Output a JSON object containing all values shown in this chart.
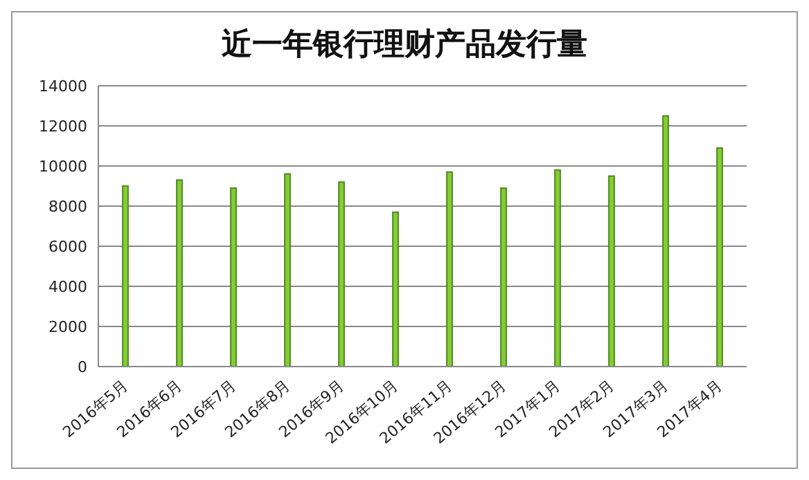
{
  "chart_data": {
    "type": "bar",
    "title": "近一年银行理财产品发行量",
    "categories": [
      "2016年5月",
      "2016年6月",
      "2016年7月",
      "2016年8月",
      "2016年9月",
      "2016年10月",
      "2016年11月",
      "2016年12月",
      "2017年1月",
      "2017年2月",
      "2017年3月",
      "2017年4月"
    ],
    "values": [
      9000,
      9300,
      8900,
      9600,
      9200,
      7700,
      9700,
      8900,
      9800,
      9500,
      12500,
      10900
    ],
    "color": "#86cc36",
    "ylim": [
      0,
      14000
    ],
    "yticks": [
      0,
      2000,
      4000,
      6000,
      8000,
      10000,
      12000,
      14000
    ],
    "grid": "y"
  }
}
